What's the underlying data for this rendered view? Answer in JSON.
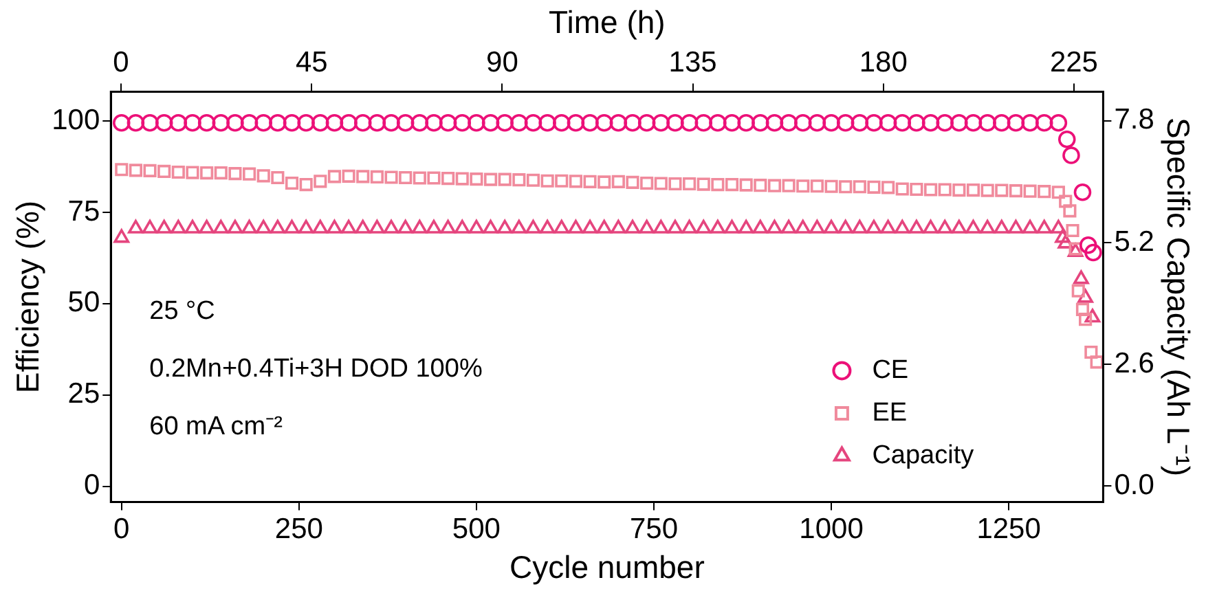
{
  "chart_data": {
    "type": "scatter",
    "xlabel": "Cycle number",
    "ylabel": "Efficiency (%)",
    "y2label": "Specific Capacity (Ah L⁻¹)",
    "x2label": "Time (h)",
    "xlim": [
      -15,
      1383
    ],
    "xticks": [
      0,
      250,
      500,
      750,
      1000,
      1250
    ],
    "x2lim": [
      -2.4,
      231.9
    ],
    "x2ticks": [
      0,
      45,
      90,
      135,
      180,
      225
    ],
    "ylim": [
      -4.3,
      108
    ],
    "yticks": [
      0,
      25,
      50,
      75,
      100
    ],
    "y2lim": [
      -0.34,
      8.42
    ],
    "y2ticks": [
      {
        "value": 0,
        "label": "0.0"
      },
      2.6,
      5.2,
      7.8
    ],
    "legend": "bottom right",
    "annotations": [
      "25 °C",
      "0.2Mn+0.4Ti+3H DOD 100%",
      "60 mA cm⁻²"
    ],
    "series": [
      {
        "name": "CE",
        "color": "#ec1078",
        "marker": "circle",
        "x": [
          0,
          20,
          40,
          60,
          80,
          100,
          120,
          140,
          160,
          180,
          200,
          220,
          240,
          260,
          280,
          300,
          320,
          340,
          360,
          380,
          400,
          420,
          440,
          460,
          480,
          500,
          520,
          540,
          560,
          580,
          600,
          620,
          640,
          660,
          680,
          700,
          720,
          740,
          760,
          780,
          800,
          820,
          840,
          860,
          880,
          900,
          920,
          940,
          960,
          980,
          1000,
          1020,
          1040,
          1060,
          1080,
          1100,
          1120,
          1140,
          1160,
          1180,
          1200,
          1220,
          1240,
          1260,
          1280,
          1300,
          1320,
          1332,
          1338,
          1354,
          1362,
          1369
        ],
        "values": [
          99.5,
          99.5,
          99.5,
          99.5,
          99.5,
          99.5,
          99.5,
          99.5,
          99.5,
          99.5,
          99.5,
          99.5,
          99.5,
          99.5,
          99.5,
          99.5,
          99.5,
          99.5,
          99.5,
          99.5,
          99.5,
          99.5,
          99.5,
          99.5,
          99.5,
          99.5,
          99.5,
          99.5,
          99.5,
          99.5,
          99.5,
          99.5,
          99.5,
          99.5,
          99.5,
          99.5,
          99.5,
          99.5,
          99.5,
          99.5,
          99.5,
          99.5,
          99.5,
          99.5,
          99.5,
          99.5,
          99.5,
          99.5,
          99.5,
          99.5,
          99.5,
          99.5,
          99.5,
          99.5,
          99.5,
          99.5,
          99.5,
          99.5,
          99.5,
          99.5,
          99.5,
          99.5,
          99.5,
          99.5,
          99.5,
          99.5,
          99.5,
          95,
          90.6,
          80.5,
          66,
          64
        ]
      },
      {
        "name": "EE",
        "color": "#f08a9c",
        "marker": "square",
        "x": [
          0,
          20,
          40,
          60,
          80,
          100,
          120,
          140,
          160,
          180,
          200,
          220,
          240,
          260,
          280,
          300,
          320,
          340,
          360,
          380,
          400,
          420,
          440,
          460,
          480,
          500,
          520,
          540,
          560,
          580,
          600,
          620,
          640,
          660,
          680,
          700,
          720,
          740,
          760,
          780,
          800,
          820,
          840,
          860,
          880,
          900,
          920,
          940,
          960,
          980,
          1000,
          1020,
          1040,
          1060,
          1080,
          1100,
          1120,
          1140,
          1160,
          1180,
          1200,
          1220,
          1240,
          1260,
          1280,
          1300,
          1320,
          1330,
          1336,
          1340,
          1344,
          1348,
          1354,
          1358,
          1366,
          1374
        ],
        "values": [
          86.7,
          86.5,
          86.4,
          86.2,
          86,
          85.9,
          85.8,
          85.8,
          85.6,
          85.5,
          85,
          84.5,
          83,
          82.6,
          83.5,
          84.8,
          84.9,
          84.8,
          84.7,
          84.6,
          84.5,
          84.4,
          84.4,
          84.3,
          84.2,
          84.1,
          84,
          84,
          83.9,
          83.8,
          83.6,
          83.6,
          83.5,
          83.4,
          83.3,
          83.4,
          83.2,
          83,
          82.9,
          82.8,
          82.8,
          82.7,
          82.6,
          82.6,
          82.5,
          82.4,
          82.3,
          82.3,
          82.2,
          82.2,
          82.1,
          82,
          82,
          81.9,
          81.8,
          81.4,
          81.3,
          81.2,
          81.2,
          81.1,
          81.1,
          81,
          81,
          80.9,
          80.8,
          80.7,
          80.5,
          78,
          75.4,
          70,
          65,
          53.5,
          48.4,
          45.7,
          36.7,
          34
        ]
      },
      {
        "name": "Capacity",
        "color": "#e5457e",
        "marker": "triangle",
        "axis": "y2",
        "x": [
          0,
          20,
          40,
          60,
          80,
          100,
          120,
          140,
          160,
          180,
          200,
          220,
          240,
          260,
          280,
          300,
          320,
          340,
          360,
          380,
          400,
          420,
          440,
          460,
          480,
          500,
          520,
          540,
          560,
          580,
          600,
          620,
          640,
          660,
          680,
          700,
          720,
          740,
          760,
          780,
          800,
          820,
          840,
          860,
          880,
          900,
          920,
          940,
          960,
          980,
          1000,
          1020,
          1040,
          1060,
          1080,
          1100,
          1120,
          1140,
          1160,
          1180,
          1200,
          1220,
          1240,
          1260,
          1280,
          1300,
          1320,
          1326,
          1330,
          1344,
          1352,
          1358,
          1368
        ],
        "values": [
          5.3,
          5.5,
          5.5,
          5.5,
          5.5,
          5.5,
          5.5,
          5.5,
          5.5,
          5.5,
          5.5,
          5.5,
          5.5,
          5.5,
          5.5,
          5.5,
          5.5,
          5.5,
          5.5,
          5.5,
          5.5,
          5.5,
          5.5,
          5.5,
          5.5,
          5.5,
          5.5,
          5.5,
          5.5,
          5.5,
          5.5,
          5.5,
          5.5,
          5.5,
          5.5,
          5.5,
          5.5,
          5.5,
          5.5,
          5.5,
          5.5,
          5.5,
          5.5,
          5.5,
          5.5,
          5.5,
          5.5,
          5.5,
          5.5,
          5.5,
          5.5,
          5.5,
          5.5,
          5.5,
          5.5,
          5.5,
          5.5,
          5.5,
          5.5,
          5.5,
          5.5,
          5.5,
          5.5,
          5.5,
          5.5,
          5.5,
          5.5,
          5.3,
          5.18,
          5.0,
          4.42,
          4.02,
          3.6
        ]
      }
    ]
  }
}
